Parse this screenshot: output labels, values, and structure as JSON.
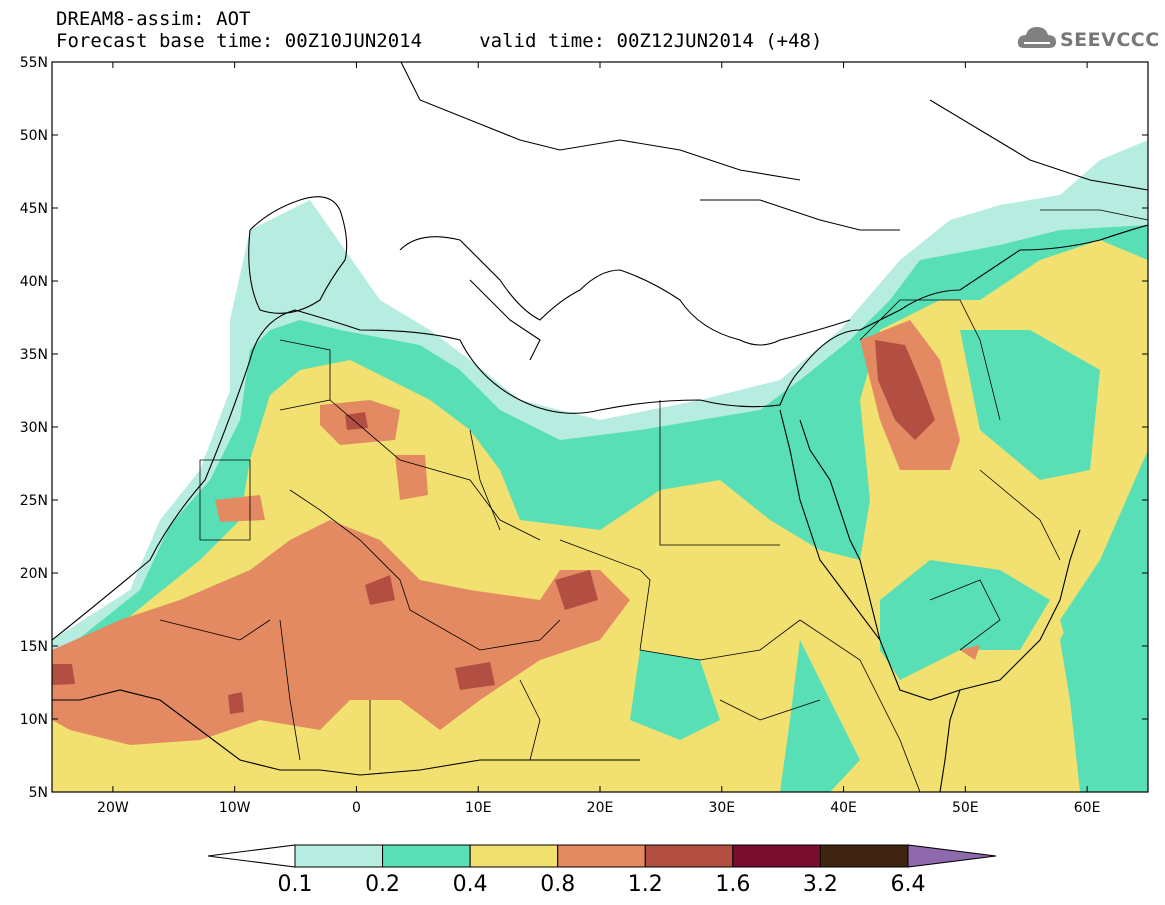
{
  "header": {
    "title_line1": "DREAM8-assim: AOT",
    "title_line2": "Forecast base time: 00Z10JUN2014     valid time: 00Z12JUN2014 (+48)"
  },
  "logo": {
    "text": "SEEVCCC",
    "icon": "cloud-icon"
  },
  "map": {
    "lon_range": [
      -25,
      65
    ],
    "lat_range": [
      5,
      55
    ],
    "lat_ticks": [
      {
        "value": 55,
        "label": "55N"
      },
      {
        "value": 50,
        "label": "50N"
      },
      {
        "value": 45,
        "label": "45N"
      },
      {
        "value": 40,
        "label": "40N"
      },
      {
        "value": 35,
        "label": "35N"
      },
      {
        "value": 30,
        "label": "30N"
      },
      {
        "value": 25,
        "label": "25N"
      },
      {
        "value": 20,
        "label": "20N"
      },
      {
        "value": 15,
        "label": "15N"
      },
      {
        "value": 10,
        "label": "10N"
      },
      {
        "value": 5,
        "label": "5N"
      }
    ],
    "lon_ticks": [
      {
        "value": -20,
        "label": "20W"
      },
      {
        "value": -10,
        "label": "10W"
      },
      {
        "value": 0,
        "label": "0"
      },
      {
        "value": 10,
        "label": "10E"
      },
      {
        "value": 20,
        "label": "20E"
      },
      {
        "value": 30,
        "label": "30E"
      },
      {
        "value": 40,
        "label": "40E"
      },
      {
        "value": 50,
        "label": "50E"
      },
      {
        "value": 60,
        "label": "60E"
      }
    ]
  },
  "colorbar": {
    "colors": [
      "#ffffff",
      "#b7ede0",
      "#58dfb6",
      "#f2e070",
      "#e38a62",
      "#b34e42",
      "#7a0d2e",
      "#3f2412",
      "#8e6aad"
    ],
    "labels": [
      "0.1",
      "0.2",
      "0.4",
      "0.8",
      "1.2",
      "1.6",
      "3.2",
      "6.4"
    ]
  }
}
